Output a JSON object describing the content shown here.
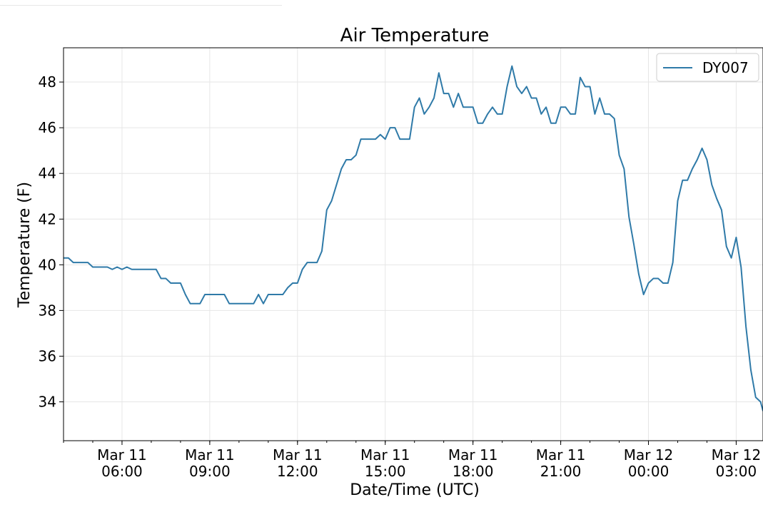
{
  "chart_data": {
    "type": "line",
    "title": "Air Temperature",
    "xlabel": "Date/Time (UTC)",
    "ylabel": "Temperature (F)",
    "x_unit": "hours (UTC)",
    "x_range": [
      "2019-03-11 04:00",
      "2019-03-12 03:55"
    ],
    "ylim": [
      32.3,
      49.5
    ],
    "yticks": [
      34,
      36,
      38,
      40,
      42,
      44,
      46,
      48
    ],
    "xticks": [
      {
        "x": "2019-03-11 06:00",
        "label": [
          "Mar 11",
          "06:00"
        ]
      },
      {
        "x": "2019-03-11 09:00",
        "label": [
          "Mar 11",
          "09:00"
        ]
      },
      {
        "x": "2019-03-11 12:00",
        "label": [
          "Mar 11",
          "12:00"
        ]
      },
      {
        "x": "2019-03-11 15:00",
        "label": [
          "Mar 11",
          "15:00"
        ]
      },
      {
        "x": "2019-03-11 18:00",
        "label": [
          "Mar 11",
          "18:00"
        ]
      },
      {
        "x": "2019-03-11 21:00",
        "label": [
          "Mar 11",
          "21:00"
        ]
      },
      {
        "x": "2019-03-12 00:00",
        "label": [
          "Mar 12",
          "00:00"
        ]
      },
      {
        "x": "2019-03-12 03:00",
        "label": [
          "Mar 12",
          "03:00"
        ]
      }
    ],
    "grid": true,
    "legend": {
      "position": "top-right"
    },
    "series": [
      {
        "name": "DY007",
        "color": "#2f7aa8",
        "points": [
          [
            "2019-03-11 04:00",
            40.3
          ],
          [
            "2019-03-11 04:10",
            40.3
          ],
          [
            "2019-03-11 04:20",
            40.1
          ],
          [
            "2019-03-11 04:30",
            40.1
          ],
          [
            "2019-03-11 04:40",
            40.1
          ],
          [
            "2019-03-11 04:50",
            40.1
          ],
          [
            "2019-03-11 05:00",
            39.9
          ],
          [
            "2019-03-11 05:10",
            39.9
          ],
          [
            "2019-03-11 05:20",
            39.9
          ],
          [
            "2019-03-11 05:30",
            39.9
          ],
          [
            "2019-03-11 05:40",
            39.8
          ],
          [
            "2019-03-11 05:50",
            39.9
          ],
          [
            "2019-03-11 06:00",
            39.8
          ],
          [
            "2019-03-11 06:10",
            39.9
          ],
          [
            "2019-03-11 06:20",
            39.8
          ],
          [
            "2019-03-11 06:30",
            39.8
          ],
          [
            "2019-03-11 06:40",
            39.8
          ],
          [
            "2019-03-11 06:50",
            39.8
          ],
          [
            "2019-03-11 07:00",
            39.8
          ],
          [
            "2019-03-11 07:10",
            39.8
          ],
          [
            "2019-03-11 07:20",
            39.4
          ],
          [
            "2019-03-11 07:30",
            39.4
          ],
          [
            "2019-03-11 07:40",
            39.2
          ],
          [
            "2019-03-11 07:50",
            39.2
          ],
          [
            "2019-03-11 08:00",
            39.2
          ],
          [
            "2019-03-11 08:10",
            38.7
          ],
          [
            "2019-03-11 08:20",
            38.3
          ],
          [
            "2019-03-11 08:30",
            38.3
          ],
          [
            "2019-03-11 08:40",
            38.3
          ],
          [
            "2019-03-11 08:50",
            38.7
          ],
          [
            "2019-03-11 09:00",
            38.7
          ],
          [
            "2019-03-11 09:10",
            38.7
          ],
          [
            "2019-03-11 09:20",
            38.7
          ],
          [
            "2019-03-11 09:30",
            38.7
          ],
          [
            "2019-03-11 09:40",
            38.3
          ],
          [
            "2019-03-11 09:50",
            38.3
          ],
          [
            "2019-03-11 10:00",
            38.3
          ],
          [
            "2019-03-11 10:10",
            38.3
          ],
          [
            "2019-03-11 10:20",
            38.3
          ],
          [
            "2019-03-11 10:30",
            38.3
          ],
          [
            "2019-03-11 10:40",
            38.7
          ],
          [
            "2019-03-11 10:50",
            38.3
          ],
          [
            "2019-03-11 11:00",
            38.7
          ],
          [
            "2019-03-11 11:10",
            38.7
          ],
          [
            "2019-03-11 11:20",
            38.7
          ],
          [
            "2019-03-11 11:30",
            38.7
          ],
          [
            "2019-03-11 11:40",
            39.0
          ],
          [
            "2019-03-11 11:50",
            39.2
          ],
          [
            "2019-03-11 12:00",
            39.2
          ],
          [
            "2019-03-11 12:10",
            39.8
          ],
          [
            "2019-03-11 12:20",
            40.1
          ],
          [
            "2019-03-11 12:30",
            40.1
          ],
          [
            "2019-03-11 12:40",
            40.1
          ],
          [
            "2019-03-11 12:50",
            40.6
          ],
          [
            "2019-03-11 13:00",
            42.4
          ],
          [
            "2019-03-11 13:10",
            42.8
          ],
          [
            "2019-03-11 13:20",
            43.5
          ],
          [
            "2019-03-11 13:30",
            44.2
          ],
          [
            "2019-03-11 13:40",
            44.6
          ],
          [
            "2019-03-11 13:50",
            44.6
          ],
          [
            "2019-03-11 14:00",
            44.8
          ],
          [
            "2019-03-11 14:10",
            45.5
          ],
          [
            "2019-03-11 14:20",
            45.5
          ],
          [
            "2019-03-11 14:30",
            45.5
          ],
          [
            "2019-03-11 14:40",
            45.5
          ],
          [
            "2019-03-11 14:50",
            45.7
          ],
          [
            "2019-03-11 15:00",
            45.5
          ],
          [
            "2019-03-11 15:10",
            46.0
          ],
          [
            "2019-03-11 15:20",
            46.0
          ],
          [
            "2019-03-11 15:30",
            45.5
          ],
          [
            "2019-03-11 15:40",
            45.5
          ],
          [
            "2019-03-11 15:50",
            45.5
          ],
          [
            "2019-03-11 16:00",
            46.9
          ],
          [
            "2019-03-11 16:10",
            47.3
          ],
          [
            "2019-03-11 16:20",
            46.6
          ],
          [
            "2019-03-11 16:30",
            46.9
          ],
          [
            "2019-03-11 16:40",
            47.3
          ],
          [
            "2019-03-11 16:50",
            48.4
          ],
          [
            "2019-03-11 17:00",
            47.5
          ],
          [
            "2019-03-11 17:10",
            47.5
          ],
          [
            "2019-03-11 17:20",
            46.9
          ],
          [
            "2019-03-11 17:30",
            47.5
          ],
          [
            "2019-03-11 17:40",
            46.9
          ],
          [
            "2019-03-11 17:50",
            46.9
          ],
          [
            "2019-03-11 18:00",
            46.9
          ],
          [
            "2019-03-11 18:10",
            46.2
          ],
          [
            "2019-03-11 18:20",
            46.2
          ],
          [
            "2019-03-11 18:30",
            46.6
          ],
          [
            "2019-03-11 18:40",
            46.9
          ],
          [
            "2019-03-11 18:50",
            46.6
          ],
          [
            "2019-03-11 19:00",
            46.6
          ],
          [
            "2019-03-11 19:10",
            47.8
          ],
          [
            "2019-03-11 19:20",
            48.7
          ],
          [
            "2019-03-11 19:30",
            47.8
          ],
          [
            "2019-03-11 19:40",
            47.5
          ],
          [
            "2019-03-11 19:50",
            47.8
          ],
          [
            "2019-03-11 20:00",
            47.3
          ],
          [
            "2019-03-11 20:10",
            47.3
          ],
          [
            "2019-03-11 20:20",
            46.6
          ],
          [
            "2019-03-11 20:30",
            46.9
          ],
          [
            "2019-03-11 20:40",
            46.2
          ],
          [
            "2019-03-11 20:50",
            46.2
          ],
          [
            "2019-03-11 21:00",
            46.9
          ],
          [
            "2019-03-11 21:10",
            46.9
          ],
          [
            "2019-03-11 21:20",
            46.6
          ],
          [
            "2019-03-11 21:30",
            46.6
          ],
          [
            "2019-03-11 21:40",
            48.2
          ],
          [
            "2019-03-11 21:50",
            47.8
          ],
          [
            "2019-03-11 22:00",
            47.8
          ],
          [
            "2019-03-11 22:10",
            46.6
          ],
          [
            "2019-03-11 22:20",
            47.3
          ],
          [
            "2019-03-11 22:30",
            46.6
          ],
          [
            "2019-03-11 22:40",
            46.6
          ],
          [
            "2019-03-11 22:50",
            46.4
          ],
          [
            "2019-03-11 23:00",
            44.8
          ],
          [
            "2019-03-11 23:10",
            44.2
          ],
          [
            "2019-03-11 23:20",
            42.1
          ],
          [
            "2019-03-11 23:30",
            40.9
          ],
          [
            "2019-03-11 23:40",
            39.6
          ],
          [
            "2019-03-11 23:50",
            38.7
          ],
          [
            "2019-03-12 00:00",
            39.2
          ],
          [
            "2019-03-12 00:10",
            39.4
          ],
          [
            "2019-03-12 00:20",
            39.4
          ],
          [
            "2019-03-12 00:30",
            39.2
          ],
          [
            "2019-03-12 00:40",
            39.2
          ],
          [
            "2019-03-12 00:50",
            40.1
          ],
          [
            "2019-03-12 01:00",
            42.8
          ],
          [
            "2019-03-12 01:10",
            43.7
          ],
          [
            "2019-03-12 01:20",
            43.7
          ],
          [
            "2019-03-12 01:30",
            44.2
          ],
          [
            "2019-03-12 01:40",
            44.6
          ],
          [
            "2019-03-12 01:50",
            45.1
          ],
          [
            "2019-03-12 02:00",
            44.6
          ],
          [
            "2019-03-12 02:10",
            43.5
          ],
          [
            "2019-03-12 02:20",
            42.9
          ],
          [
            "2019-03-12 02:30",
            42.4
          ],
          [
            "2019-03-12 02:40",
            40.8
          ],
          [
            "2019-03-12 02:50",
            40.3
          ],
          [
            "2019-03-12 03:00",
            41.2
          ],
          [
            "2019-03-12 03:10",
            39.9
          ],
          [
            "2019-03-12 03:20",
            37.3
          ],
          [
            "2019-03-12 03:30",
            35.4
          ],
          [
            "2019-03-12 03:40",
            34.2
          ],
          [
            "2019-03-12 03:50",
            34.0
          ],
          [
            "2019-03-12 03:55",
            33.6
          ]
        ]
      }
    ]
  }
}
